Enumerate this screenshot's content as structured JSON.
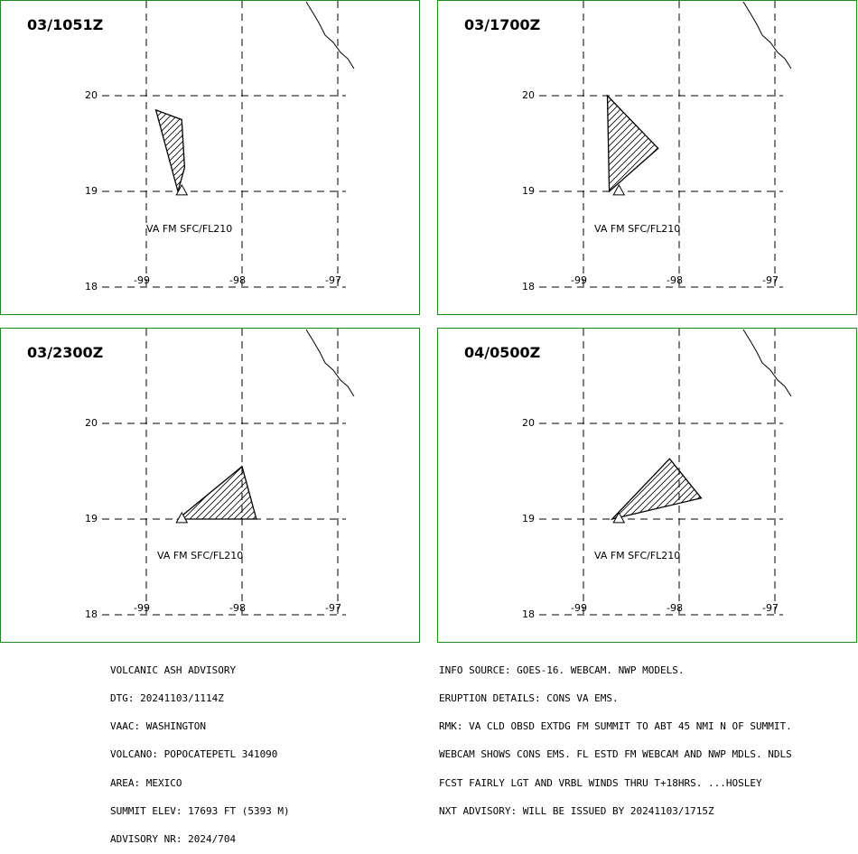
{
  "panels": [
    {
      "time": "03/1051Z",
      "va_label": "VA FM SFC/FL210",
      "polygon": [
        [
          -98.9,
          19.85
        ],
        [
          -98.63,
          19.75
        ],
        [
          -98.6,
          19.25
        ],
        [
          -98.67,
          19.0
        ]
      ]
    },
    {
      "time": "03/1700Z",
      "va_label": "VA FM SFC/FL210",
      "polygon": [
        [
          -98.75,
          20.0
        ],
        [
          -98.22,
          19.45
        ],
        [
          -98.73,
          19.0
        ]
      ]
    },
    {
      "time": "03/2300Z",
      "va_label": "VA FM SFC/FL210",
      "polygon": [
        [
          -98.67,
          19.0
        ],
        [
          -98.0,
          19.55
        ],
        [
          -97.85,
          19.0
        ]
      ]
    },
    {
      "time": "04/0500Z",
      "va_label": "VA FM SFC/FL210",
      "polygon": [
        [
          -98.7,
          19.0
        ],
        [
          -98.1,
          19.63
        ],
        [
          -97.77,
          19.22
        ]
      ]
    }
  ],
  "grid": {
    "lat_labels": [
      "20",
      "19",
      "18"
    ],
    "lon_labels": [
      "-99",
      "-98",
      "-97"
    ]
  },
  "advisory_left": [
    "VOLCANIC ASH ADVISORY",
    "DTG: 20241103/1114Z",
    "VAAC: WASHINGTON",
    "VOLCANO: POPOCATEPETL 341090",
    "AREA: MEXICO",
    "SUMMIT ELEV: 17693 FT (5393 M)",
    "ADVISORY NR: 2024/704"
  ],
  "advisory_right": [
    "INFO SOURCE: GOES-16. WEBCAM. NWP MODELS.",
    "ERUPTION DETAILS: CONS VA EMS.",
    "RMK: VA CLD OBSD EXTDG FM SUMMIT TO ABT 45 NMI N OF SUMMIT.",
    "WEBCAM SHOWS CONS EMS. FL ESTD FM WEBCAM AND NWP MDLS. NDLS",
    "FCST FAIRLY LGT AND VRBL WINDS THRU T+18HRS. ...HOSLEY",
    "NXT ADVISORY: WILL BE ISSUED BY 20241103/1715Z"
  ]
}
